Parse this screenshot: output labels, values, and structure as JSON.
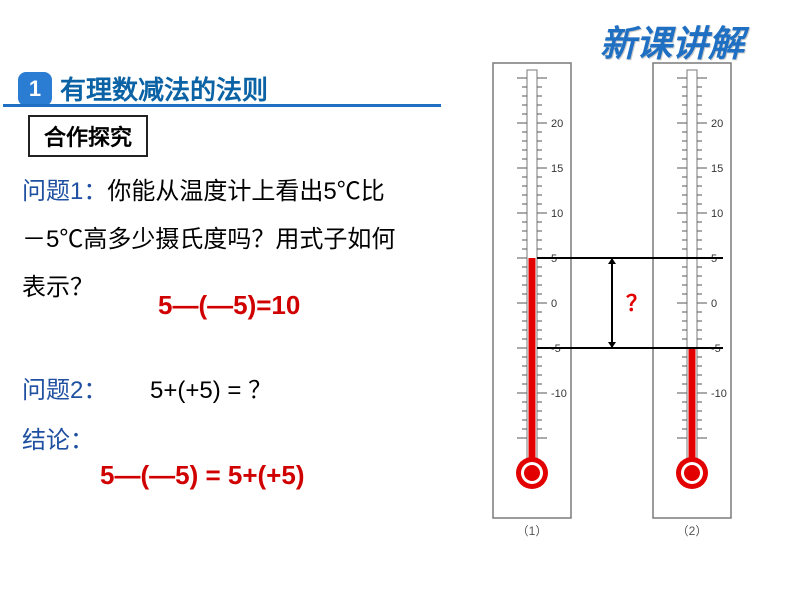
{
  "header": {
    "title": "新课讲解"
  },
  "section": {
    "badge": "1",
    "title": "有理数减法的法则",
    "subbox": "合作探究"
  },
  "q1": {
    "label": "问题1：",
    "text_a": "你能从温度计上看出5℃比",
    "text_b": "－5℃高多少摄氏度吗？用式子如何",
    "text_c": "表示？",
    "equation": "5—(—5)=10"
  },
  "q2": {
    "label": "问题2：",
    "equation": "5+(+5) = ？"
  },
  "conclusion": {
    "label": "结论：",
    "equation": "5—(—5) = 5+(+5)"
  },
  "thermo": {
    "background": "#ffffff",
    "frame_color": "#7a7a7a",
    "tick_color": "#555555",
    "label_fontsize": 11,
    "label_color": "#333333",
    "fluid_color": "#e30000",
    "bulb_outer": "#e30000",
    "bulb_mid": "#ffffff",
    "bulb_inner": "#e30000",
    "range": {
      "min": -15,
      "max": 25,
      "step": 5
    },
    "marks": [
      20,
      15,
      10,
      5,
      0,
      -5,
      -10
    ],
    "left": {
      "value": 5,
      "caption": "（1）"
    },
    "right": {
      "value": -5,
      "caption": "（2）"
    },
    "bracket": {
      "line_color": "#000000",
      "top_value": 5,
      "bottom_value": -5,
      "qmark": "？",
      "qmark_color": "#e30000",
      "qmark_fontsize": 22,
      "qmark_weight": "bold"
    }
  }
}
